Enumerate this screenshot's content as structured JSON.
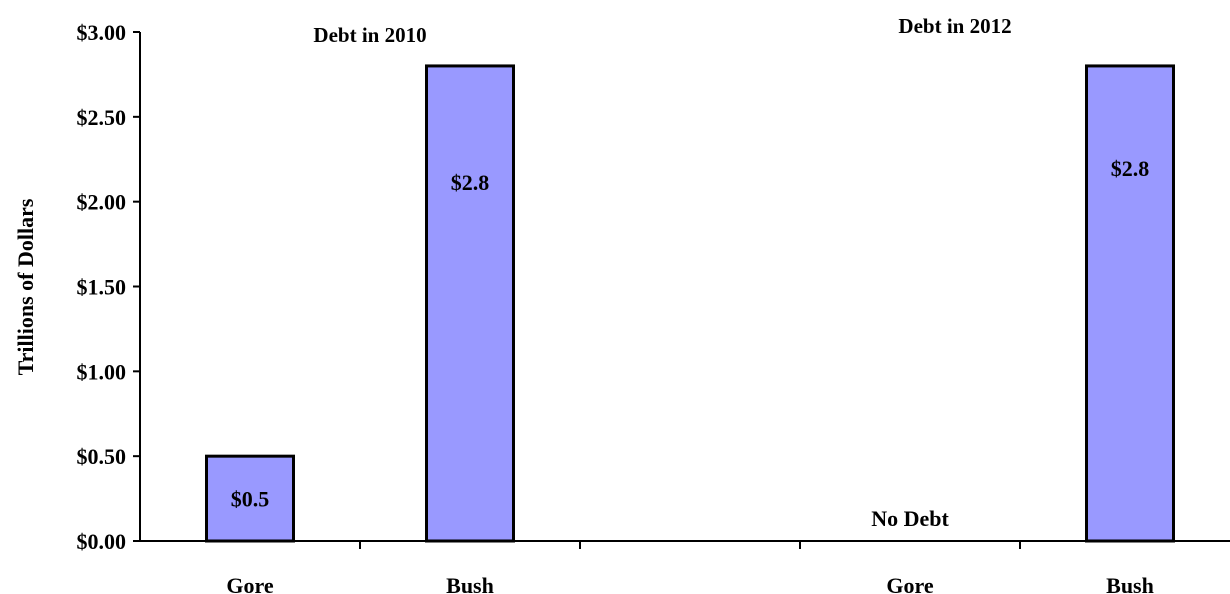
{
  "chart_data": {
    "type": "bar",
    "ylabel": "Trillions of Dollars",
    "ylim": [
      0,
      3
    ],
    "yticks": [
      {
        "value": 0.0,
        "label": "$0.00"
      },
      {
        "value": 0.5,
        "label": "$0.50"
      },
      {
        "value": 1.0,
        "label": "$1.00"
      },
      {
        "value": 1.5,
        "label": "$1.50"
      },
      {
        "value": 2.0,
        "label": "$2.00"
      },
      {
        "value": 2.5,
        "label": "$2.50"
      },
      {
        "value": 3.0,
        "label": "$3.00"
      }
    ],
    "categories": [
      "Gore",
      "Bush",
      "",
      "Gore",
      "Bush"
    ],
    "groups": [
      {
        "title": "Debt in 2010",
        "categories": [
          "Gore",
          "Bush"
        ]
      },
      {
        "title": "Debt in 2012",
        "categories": [
          "Gore",
          "Bush"
        ]
      }
    ],
    "bars": [
      {
        "category_index": 0,
        "category": "Gore",
        "group": "Debt in 2010",
        "value": 0.5,
        "label": "$0.5"
      },
      {
        "category_index": 1,
        "category": "Bush",
        "group": "Debt in 2010",
        "value": 2.8,
        "label": "$2.8"
      },
      {
        "category_index": 3,
        "category": "Gore",
        "group": "Debt in 2012",
        "value": 0,
        "label": "No Debt"
      },
      {
        "category_index": 4,
        "category": "Bush",
        "group": "Debt in 2012",
        "value": 2.8,
        "label": "$2.8"
      }
    ],
    "bar_color": "#9999ff",
    "bar_edge_color": "#000000",
    "grid": false,
    "legend": "none"
  }
}
